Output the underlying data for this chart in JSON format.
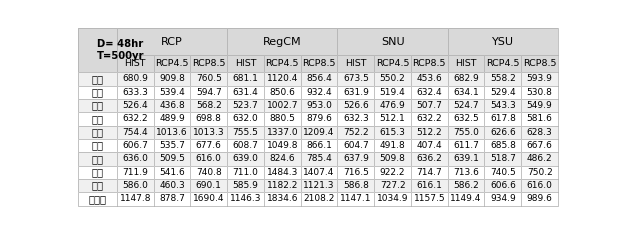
{
  "title_cell": "D= 48hr\nT=500yr",
  "groups": [
    "RCP",
    "RegCM",
    "SNU",
    "YSU"
  ],
  "subheaders": [
    "HIST",
    "RCP4.5",
    "RCP8.5"
  ],
  "stations": [
    "서울",
    "원주",
    "춘천",
    "홍천",
    "양평",
    "이천",
    "인제",
    "제천",
    "충주",
    "대관령"
  ],
  "stations_ordered": [
    "서울",
    "원주",
    "춘천",
    "홍천",
    "양평",
    "이천",
    "인제",
    "제천",
    "충주",
    "대관령"
  ],
  "data": {
    "RCP": {
      "HIST": [
        680.9,
        633.3,
        526.4,
        632.2,
        754.4,
        606.7,
        636.0,
        711.9,
        586.0,
        1147.8
      ],
      "RCP4.5": [
        909.8,
        539.4,
        436.8,
        489.9,
        1013.6,
        535.7,
        509.5,
        541.6,
        460.3,
        878.7
      ],
      "RCP8.5": [
        760.5,
        594.7,
        568.2,
        698.8,
        1013.3,
        677.6,
        616.0,
        740.8,
        690.1,
        1690.4
      ]
    },
    "RegCM": {
      "HIST": [
        681.1,
        631.4,
        523.7,
        632.0,
        755.5,
        608.7,
        639.0,
        711.0,
        585.9,
        1146.3
      ],
      "RCP4.5": [
        1120.4,
        850.6,
        1002.7,
        880.5,
        1337.0,
        1049.8,
        824.6,
        1484.3,
        1182.2,
        1834.6
      ],
      "RCP8.5": [
        856.4,
        932.4,
        953.0,
        879.6,
        1209.4,
        866.1,
        785.4,
        1407.4,
        1121.3,
        2108.2
      ]
    },
    "SNU": {
      "HIST": [
        673.5,
        631.9,
        526.6,
        632.3,
        752.2,
        604.7,
        637.9,
        716.5,
        586.8,
        1147.1
      ],
      "RCP4.5": [
        550.2,
        519.4,
        476.9,
        512.1,
        615.3,
        491.8,
        509.8,
        922.2,
        727.2,
        1034.9
      ],
      "RCP8.5": [
        453.6,
        632.4,
        507.7,
        632.2,
        512.2,
        407.4,
        636.2,
        714.7,
        616.1,
        1157.5
      ]
    },
    "YSU": {
      "HIST": [
        682.9,
        634.1,
        524.7,
        632.5,
        755.0,
        611.7,
        639.1,
        713.6,
        586.2,
        1149.4
      ],
      "RCP4.5": [
        558.2,
        529.4,
        543.3,
        617.8,
        626.6,
        685.8,
        518.7,
        740.5,
        606.6,
        934.9
      ],
      "RCP8.5": [
        593.9,
        530.8,
        549.9,
        581.6,
        628.3,
        667.6,
        486.2,
        750.2,
        616.0,
        989.6
      ]
    }
  },
  "header_bg": "#d9d9d9",
  "row_alt_bg": "#f0f0f0",
  "row_bg": "#ffffff",
  "border_color": "#aaaaaa",
  "text_color": "#000000",
  "font_size_group": 8.0,
  "font_size_subheader": 6.8,
  "font_size_label": 7.2,
  "font_size_data": 6.5
}
